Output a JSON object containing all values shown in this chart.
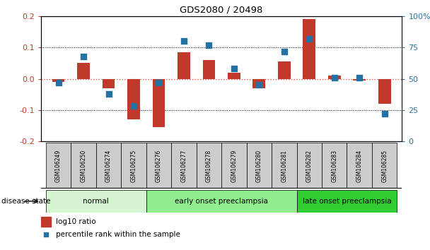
{
  "title": "GDS2080 / 20498",
  "samples": [
    "GSM106249",
    "GSM106250",
    "GSM106274",
    "GSM106275",
    "GSM106276",
    "GSM106277",
    "GSM106278",
    "GSM106279",
    "GSM106280",
    "GSM106281",
    "GSM106282",
    "GSM106283",
    "GSM106284",
    "GSM106285"
  ],
  "log10_ratio": [
    -0.01,
    0.05,
    -0.03,
    -0.13,
    -0.155,
    0.085,
    0.06,
    0.02,
    -0.03,
    0.055,
    0.19,
    0.01,
    -0.005,
    -0.08
  ],
  "percentile_rank": [
    47,
    68,
    38,
    28,
    47,
    80,
    77,
    58,
    45,
    72,
    82,
    51,
    51,
    22
  ],
  "bar_color": "#c0392b",
  "dot_color": "#2471a3",
  "zero_line_color": "#e74c3c",
  "ylim_left": [
    -0.2,
    0.2
  ],
  "ylim_right": [
    0,
    100
  ],
  "yticks_left": [
    -0.2,
    -0.1,
    0.0,
    0.1,
    0.2
  ],
  "yticks_right": [
    0,
    25,
    50,
    75,
    100
  ],
  "groups": [
    {
      "label": "normal",
      "start": 0,
      "end": 3,
      "color": "#d5f5d0"
    },
    {
      "label": "early onset preeclampsia",
      "start": 4,
      "end": 9,
      "color": "#90ee90"
    },
    {
      "label": "late onset preeclampsia",
      "start": 10,
      "end": 13,
      "color": "#32cd32"
    }
  ],
  "legend_log10": "log10 ratio",
  "legend_pct": "percentile rank within the sample",
  "xlabel_disease": "disease state",
  "bar_width": 0.5,
  "dot_size": 28
}
